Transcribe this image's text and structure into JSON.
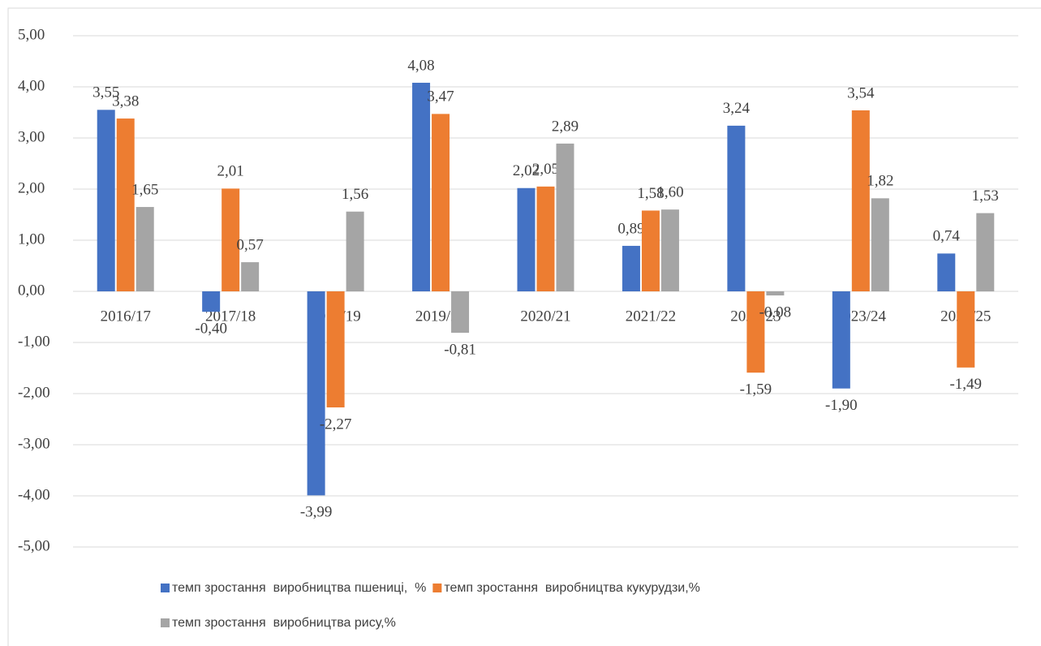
{
  "chart_data": {
    "type": "bar",
    "categories": [
      "2016/17",
      "2017/18",
      "2018/19",
      "2019/20",
      "2020/21",
      "2021/22",
      "2022/23",
      "2023/24",
      "2024/25"
    ],
    "series": [
      {
        "name": "темп зростання  виробництва пшениці,  %",
        "color": "#4472c4",
        "values": [
          3.55,
          -0.4,
          -3.99,
          4.08,
          2.02,
          0.89,
          3.24,
          -1.9,
          0.74
        ],
        "value_labels": [
          "3,55",
          "-0,40",
          "-3,99",
          "4,08",
          "2,02",
          "0,89",
          "3,24",
          "-1,90",
          "0,74"
        ]
      },
      {
        "name": "темп зростання  виробництва кукурудзи,%",
        "color": "#ed7d31",
        "values": [
          3.38,
          2.01,
          -2.27,
          3.47,
          2.05,
          1.58,
          -1.59,
          3.54,
          -1.49
        ],
        "value_labels": [
          "3,38",
          "2,01",
          "-2,27",
          "3,47",
          "2,05",
          "1,58",
          "-1,59",
          "3,54",
          "-1,49"
        ]
      },
      {
        "name": "темп зростання  виробництва рису,%",
        "color": "#a5a5a5",
        "values": [
          1.65,
          0.57,
          1.56,
          -0.81,
          2.89,
          1.6,
          -0.08,
          1.82,
          1.53
        ],
        "value_labels": [
          "1,65",
          "0,57",
          "1,56",
          "-0,81",
          "2,89",
          "1,60",
          "-0,08",
          "1,82",
          "1,53"
        ]
      }
    ],
    "ylim": [
      -5,
      5
    ],
    "yticks": [
      {
        "value": -5,
        "label": "-5,00"
      },
      {
        "value": -4,
        "label": "-4,00"
      },
      {
        "value": -3,
        "label": "-3,00"
      },
      {
        "value": -2,
        "label": "-2,00"
      },
      {
        "value": -1,
        "label": "-1,00"
      },
      {
        "value": 0,
        "label": "0,00"
      },
      {
        "value": 1,
        "label": "1,00"
      },
      {
        "value": 2,
        "label": "2,00"
      },
      {
        "value": 3,
        "label": "3,00"
      },
      {
        "value": 4,
        "label": "4,00"
      },
      {
        "value": 5,
        "label": "5,00"
      }
    ],
    "grid": true
  }
}
